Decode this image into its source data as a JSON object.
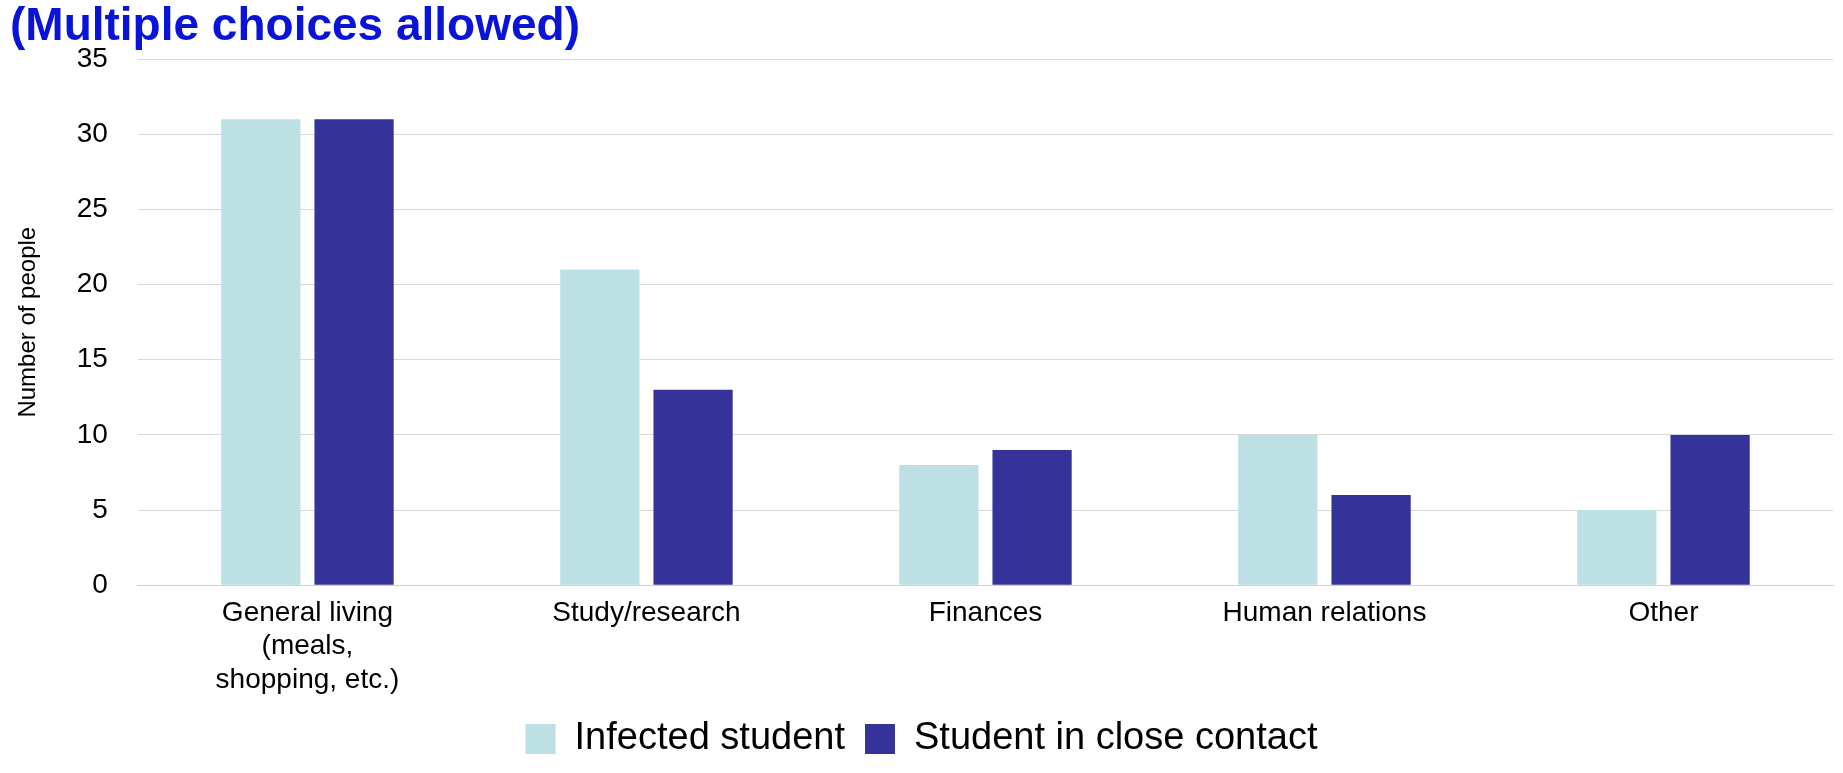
{
  "chart_data": {
    "type": "bar",
    "title": "(Multiple choices allowed)",
    "ylabel": "Number of people",
    "categories": [
      "General living (meals, shopping, etc.)",
      "Study/research",
      "Finances",
      "Human relations",
      "Other"
    ],
    "series": [
      {
        "name": "Infected student",
        "color": "#bce0e3",
        "values": [
          31,
          21,
          8,
          10,
          5
        ]
      },
      {
        "name": "Student in close contact",
        "color": "#353399",
        "values": [
          31,
          13,
          9,
          6,
          10
        ]
      }
    ],
    "ylim": [
      0,
      35
    ],
    "yticks": [
      0,
      5,
      10,
      15,
      20,
      25,
      30,
      35
    ],
    "grid": "y",
    "legend": "bottom"
  }
}
